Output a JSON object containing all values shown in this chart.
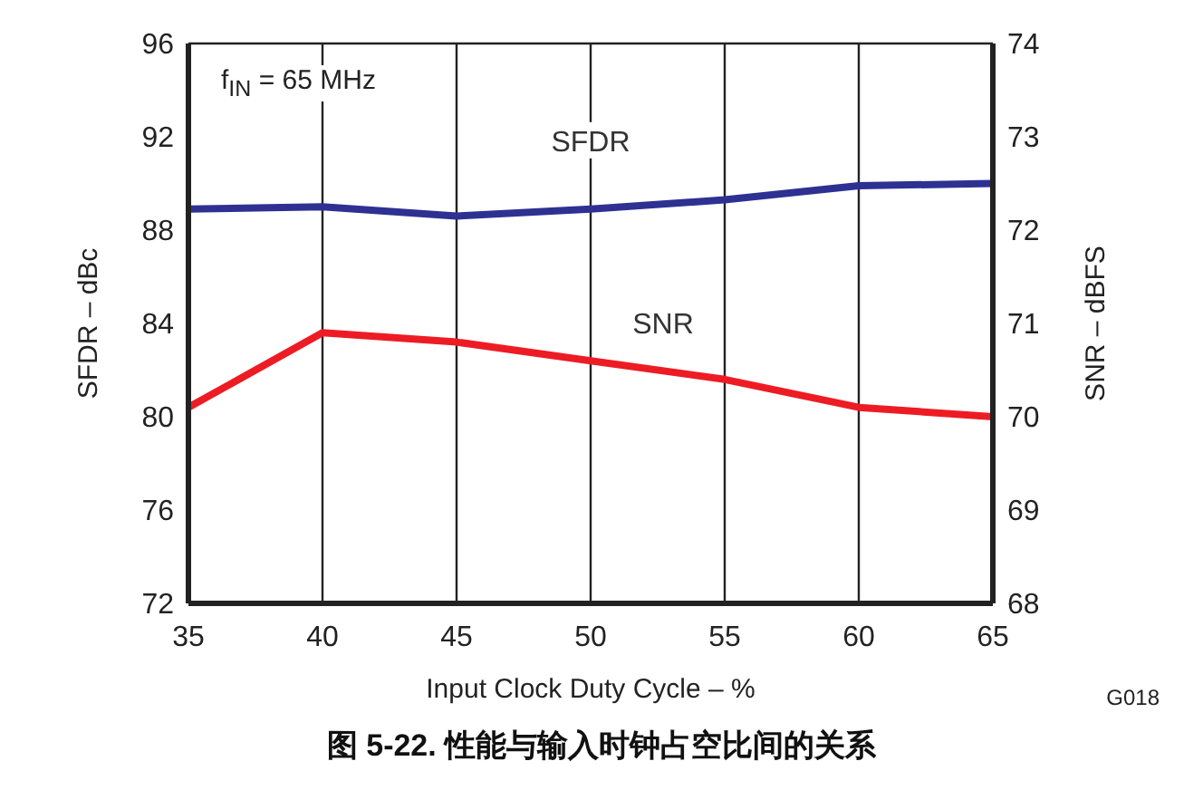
{
  "chart_data": {
    "type": "line",
    "title": "图 5-22. 性能与输入时钟占空比间的关系",
    "xlabel": "Input Clock Duty Cycle – %",
    "ylabel": "SFDR – dBc",
    "y2label": "SNR – dBFS",
    "annotations": [
      "f$_{IN}$ = 65 MHz",
      "G018"
    ],
    "x": [
      35,
      40,
      45,
      50,
      55,
      60,
      65
    ],
    "series": [
      {
        "name": "SFDR",
        "color": "#2e3192",
        "values": [
          88.9,
          89.0,
          88.6,
          88.9,
          89.3,
          89.9,
          90.0
        ]
      },
      {
        "name": "SNR",
        "color": "#ed1c24",
        "axis": "y2",
        "values": [
          70.1,
          70.9,
          70.8,
          70.6,
          70.4,
          70.1,
          70.0
        ]
      }
    ],
    "xlim": [
      35,
      65
    ],
    "xticks": [
      35,
      40,
      45,
      50,
      55,
      60,
      65
    ],
    "ylim": [
      72,
      96
    ],
    "yticks": [
      72,
      76,
      80,
      84,
      88,
      92,
      96
    ],
    "y2lim": [
      68,
      74
    ],
    "y2ticks": [
      68,
      69,
      70,
      71,
      72,
      73,
      74
    ],
    "grid": true,
    "legend": false,
    "marker": "none",
    "line_style": "solid"
  }
}
